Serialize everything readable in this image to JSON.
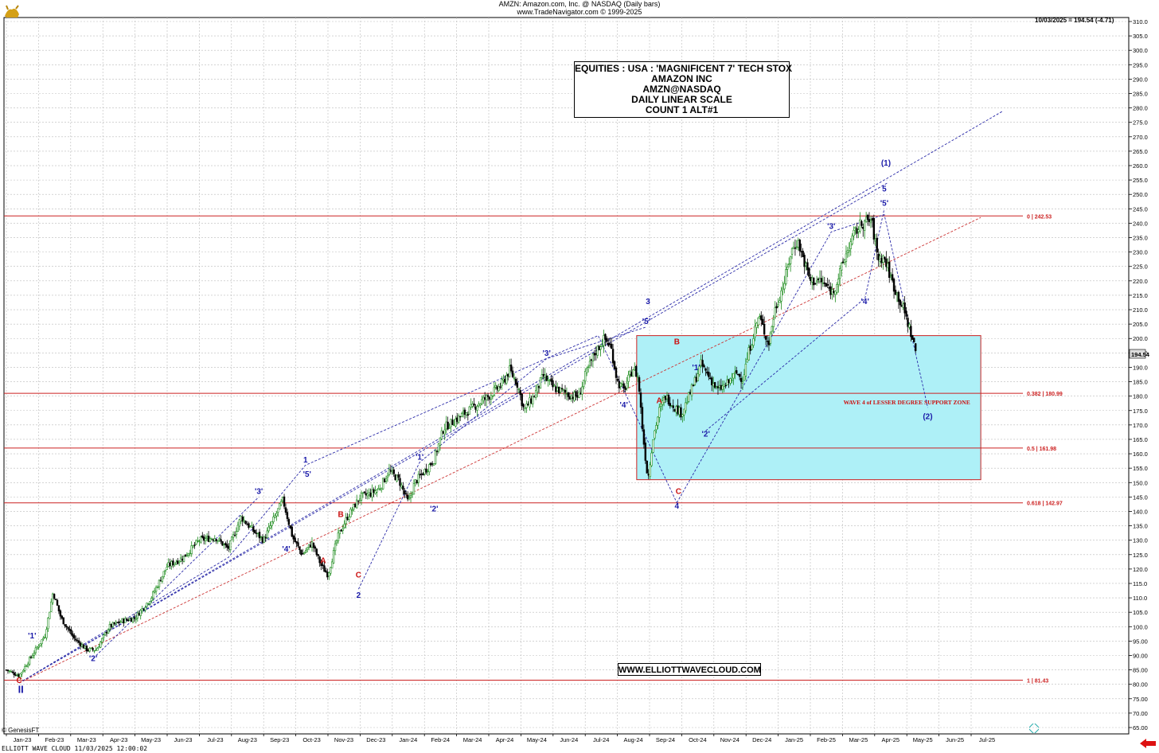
{
  "header": {
    "line1": "AMZN:  Amazon.com, Inc. @ NASDAQ  (Daily bars)",
    "line2": "www.TradeNavigator.com © 1999-2025",
    "last_quote": "10/03/2025 = 194.54 (-4.71)"
  },
  "info_box": {
    "lines": [
      "EQUITIES : USA : 'MAGNIFICENT 7' TECH STOX",
      "AMAZON INC",
      "AMZN@NASDAQ",
      "DAILY LINEAR SCALE",
      "COUNT 1 ALT#1"
    ]
  },
  "watermark": "WWW.ELLIOTTWAVECLOUD.COM",
  "footer": {
    "left": "ELLIOTT WAVE CLOUD   11/03/2025 12:00:02",
    "genesis": "© GenesisFT"
  },
  "colors": {
    "up_candle": "#1a8a1a",
    "down_candle": "#000000",
    "wave_label": "#1a1aa8",
    "correction_label": "#cc1111",
    "fib_line": "#cc2222",
    "zone_fill": "#aef0f7",
    "channel_blue": "#2a2aa8",
    "channel_red": "#cc3333"
  },
  "chart_data": {
    "type": "candlestick",
    "ylim": [
      65,
      310
    ],
    "y_ticks": [
      65,
      70,
      75,
      80,
      85,
      90,
      95,
      100,
      105,
      110,
      115,
      120,
      125,
      130,
      135,
      140,
      145,
      150,
      155,
      160,
      165,
      170,
      175,
      180,
      185,
      190,
      195,
      200,
      205,
      210,
      215,
      220,
      225,
      230,
      235,
      240,
      245,
      250,
      255,
      260,
      265,
      270,
      275,
      280,
      285,
      290,
      295,
      300,
      305,
      310
    ],
    "y_tick_labels": [
      "65.00",
      "70.00",
      "75.00",
      "80.00",
      "85.00",
      "90.00",
      "95.00",
      "100.0",
      "105.0",
      "110.0",
      "115.0",
      "120.0",
      "125.0",
      "130.0",
      "135.0",
      "140.0",
      "145.0",
      "150.0",
      "155.0",
      "160.0",
      "165.0",
      "170.0",
      "175.0",
      "180.0",
      "185.0",
      "190.0",
      "195.0",
      "200.0",
      "205.0",
      "210.0",
      "215.0",
      "220.0",
      "225.0",
      "230.0",
      "235.0",
      "240.0",
      "245.0",
      "250.0",
      "255.0",
      "260.0",
      "265.0",
      "270.0",
      "275.0",
      "280.0",
      "285.0",
      "290.0",
      "295.0",
      "300.0",
      "305.0",
      "310.0"
    ],
    "x_labels": [
      "Jan-23",
      "Feb-23",
      "Mar-23",
      "Apr-23",
      "May-23",
      "Jun-23",
      "Jul-23",
      "Aug-23",
      "Sep-23",
      "Oct-23",
      "Nov-23",
      "Dec-23",
      "Jan-24",
      "Feb-24",
      "Mar-24",
      "Apr-24",
      "May-24",
      "Jun-24",
      "Jul-24",
      "Aug-24",
      "Sep-24",
      "Oct-24",
      "Nov-24",
      "Dec-24",
      "Jan-25",
      "Feb-25",
      "Mar-25",
      "Apr-25",
      "May-25",
      "Jun-25",
      "Jul-25"
    ],
    "x_range_months": [
      0,
      31
    ],
    "last_price": 194.54,
    "last_price_label": "194.54",
    "price_path": [
      [
        0,
        85
      ],
      [
        0.4,
        83
      ],
      [
        0.8,
        90
      ],
      [
        1.2,
        97
      ],
      [
        1.45,
        112
      ],
      [
        1.7,
        103
      ],
      [
        2.1,
        96
      ],
      [
        2.5,
        92
      ],
      [
        2.8,
        92
      ],
      [
        3.2,
        100
      ],
      [
        3.6,
        102
      ],
      [
        4.0,
        103
      ],
      [
        4.5,
        110
      ],
      [
        5.0,
        121
      ],
      [
        5.5,
        124
      ],
      [
        6.0,
        130
      ],
      [
        6.5,
        131
      ],
      [
        6.9,
        127
      ],
      [
        7.3,
        138
      ],
      [
        7.7,
        133
      ],
      [
        8.0,
        130
      ],
      [
        8.3,
        137
      ],
      [
        8.6,
        144
      ],
      [
        8.9,
        131
      ],
      [
        9.2,
        125
      ],
      [
        9.5,
        129
      ],
      [
        9.8,
        121
      ],
      [
        10.0,
        118
      ],
      [
        10.3,
        131
      ],
      [
        10.6,
        138
      ],
      [
        11.0,
        145
      ],
      [
        11.3,
        146
      ],
      [
        11.6,
        148
      ],
      [
        11.9,
        154
      ],
      [
        12.2,
        151
      ],
      [
        12.5,
        143
      ],
      [
        12.7,
        150
      ],
      [
        13.0,
        154
      ],
      [
        13.3,
        158
      ],
      [
        13.6,
        169
      ],
      [
        14.0,
        172
      ],
      [
        14.5,
        176
      ],
      [
        15.0,
        180
      ],
      [
        15.4,
        184
      ],
      [
        15.65,
        189
      ],
      [
        15.9,
        184
      ],
      [
        16.1,
        175
      ],
      [
        16.4,
        180
      ],
      [
        16.7,
        187
      ],
      [
        17.0,
        183
      ],
      [
        17.4,
        181
      ],
      [
        17.6,
        180
      ],
      [
        17.8,
        180
      ],
      [
        18.0,
        187
      ],
      [
        18.3,
        195
      ],
      [
        18.6,
        200
      ],
      [
        18.8,
        197
      ],
      [
        19.0,
        185
      ],
      [
        19.2,
        182
      ],
      [
        19.5,
        190
      ],
      [
        19.65,
        186
      ],
      [
        19.8,
        166
      ],
      [
        19.95,
        151
      ],
      [
        20.1,
        165
      ],
      [
        20.3,
        175
      ],
      [
        20.5,
        180
      ],
      [
        20.8,
        176
      ],
      [
        21.0,
        174
      ],
      [
        21.3,
        182
      ],
      [
        21.6,
        191
      ],
      [
        21.9,
        186
      ],
      [
        22.1,
        182
      ],
      [
        22.4,
        184
      ],
      [
        22.7,
        188
      ],
      [
        22.9,
        186
      ],
      [
        23.1,
        196
      ],
      [
        23.4,
        208
      ],
      [
        23.7,
        198
      ],
      [
        23.9,
        210
      ],
      [
        24.2,
        220
      ],
      [
        24.4,
        230
      ],
      [
        24.6,
        234
      ],
      [
        24.8,
        227
      ],
      [
        25.0,
        220
      ],
      [
        25.3,
        220
      ],
      [
        25.5,
        218
      ],
      [
        25.7,
        216
      ],
      [
        25.9,
        222
      ],
      [
        26.1,
        229
      ],
      [
        26.4,
        237
      ],
      [
        26.6,
        240
      ],
      [
        26.9,
        241
      ],
      [
        27.1,
        228
      ],
      [
        27.3,
        228
      ],
      [
        27.6,
        218
      ],
      [
        27.9,
        210
      ],
      [
        28.1,
        203
      ],
      [
        28.3,
        194.54
      ]
    ],
    "fib_levels": [
      {
        "value": 242.53,
        "label": "0 | 242.53"
      },
      {
        "value": 180.99,
        "label": "0.382 | 180.99"
      },
      {
        "value": 161.98,
        "label": "0.5 | 161.98"
      },
      {
        "value": 142.97,
        "label": "0.618 | 142.97"
      },
      {
        "value": 81.43,
        "label": "1 | 81.43"
      }
    ],
    "support_zone": {
      "x_start": 19.6,
      "x_end": 30.3,
      "y_top": 201,
      "y_bottom": 151,
      "label": "WAVE 4 of LESSER DEGREE SUPPORT ZONE"
    },
    "wave_labels": [
      {
        "t": "II",
        "x": 0.45,
        "y": 77,
        "c": "blue",
        "big": true
      },
      {
        "t": "C",
        "x": 0.4,
        "y": 80.5,
        "c": "red"
      },
      {
        "t": "'1'",
        "x": 0.8,
        "y": 96,
        "c": "blue"
      },
      {
        "t": "'2'",
        "x": 2.7,
        "y": 88,
        "c": "blue"
      },
      {
        "t": "'3'",
        "x": 7.85,
        "y": 146,
        "c": "blue"
      },
      {
        "t": "'4'",
        "x": 8.7,
        "y": 126,
        "c": "blue"
      },
      {
        "t": "'5'",
        "x": 9.35,
        "y": 152,
        "c": "blue"
      },
      {
        "t": "1",
        "x": 9.3,
        "y": 157,
        "c": "blue"
      },
      {
        "t": "A",
        "x": 9.85,
        "y": 122,
        "c": "red"
      },
      {
        "t": "B",
        "x": 10.4,
        "y": 138,
        "c": "red"
      },
      {
        "t": "C",
        "x": 10.95,
        "y": 117,
        "c": "red"
      },
      {
        "t": "2",
        "x": 10.95,
        "y": 110,
        "c": "blue"
      },
      {
        "t": "'1'",
        "x": 12.85,
        "y": 158,
        "c": "blue"
      },
      {
        "t": "'2'",
        "x": 13.3,
        "y": 140,
        "c": "blue"
      },
      {
        "t": "'3'",
        "x": 16.8,
        "y": 194,
        "c": "blue"
      },
      {
        "t": "'4'",
        "x": 19.2,
        "y": 176,
        "c": "blue"
      },
      {
        "t": "'5'",
        "x": 19.9,
        "y": 205,
        "c": "blue"
      },
      {
        "t": "3",
        "x": 19.95,
        "y": 212,
        "c": "blue"
      },
      {
        "t": "A",
        "x": 20.3,
        "y": 177.5,
        "c": "red"
      },
      {
        "t": "B",
        "x": 20.85,
        "y": 198,
        "c": "red"
      },
      {
        "t": "C",
        "x": 20.9,
        "y": 146,
        "c": "red"
      },
      {
        "t": "4",
        "x": 20.85,
        "y": 141,
        "c": "blue"
      },
      {
        "t": "'1'",
        "x": 21.45,
        "y": 189,
        "c": "blue"
      },
      {
        "t": "'2'",
        "x": 21.75,
        "y": 166,
        "c": "blue"
      },
      {
        "t": "'3'",
        "x": 25.65,
        "y": 238,
        "c": "blue"
      },
      {
        "t": "'4'",
        "x": 26.7,
        "y": 212,
        "c": "blue"
      },
      {
        "t": "'5'",
        "x": 27.3,
        "y": 246,
        "c": "blue"
      },
      {
        "t": "5",
        "x": 27.3,
        "y": 251,
        "c": "blue"
      },
      {
        "t": "(1)",
        "x": 27.35,
        "y": 260,
        "c": "blue"
      },
      {
        "t": "(2)",
        "x": 28.65,
        "y": 172,
        "c": "blue"
      }
    ],
    "channels": [
      {
        "c": "blue",
        "pts": [
          [
            0.4,
            80.5
          ],
          [
            31,
            279
          ]
        ]
      },
      {
        "c": "blue",
        "pts": [
          [
            0.4,
            80.5
          ],
          [
            27.4,
            254
          ]
        ]
      },
      {
        "c": "red",
        "pts": [
          [
            0.4,
            80.5
          ],
          [
            30.3,
            242
          ]
        ]
      },
      {
        "c": "blue",
        "pts": [
          [
            0.4,
            80.5
          ],
          [
            6.9,
            124
          ],
          [
            9.3,
            156
          ],
          [
            18.4,
            201
          ],
          [
            20.85,
            143
          ]
        ]
      },
      {
        "c": "blue",
        "pts": [
          [
            2.7,
            89
          ],
          [
            7.85,
            145
          ]
        ]
      },
      {
        "c": "blue",
        "pts": [
          [
            10.95,
            113
          ],
          [
            12.85,
            157
          ],
          [
            16.8,
            193
          ],
          [
            19.9,
            204
          ]
        ]
      },
      {
        "c": "blue",
        "pts": [
          [
            20.85,
            143
          ],
          [
            25.65,
            237
          ],
          [
            27.3,
            243
          ],
          [
            28.65,
            176
          ]
        ]
      },
      {
        "c": "blue",
        "pts": [
          [
            21.75,
            168
          ],
          [
            26.7,
            214
          ],
          [
            27.3,
            245
          ]
        ]
      }
    ]
  }
}
